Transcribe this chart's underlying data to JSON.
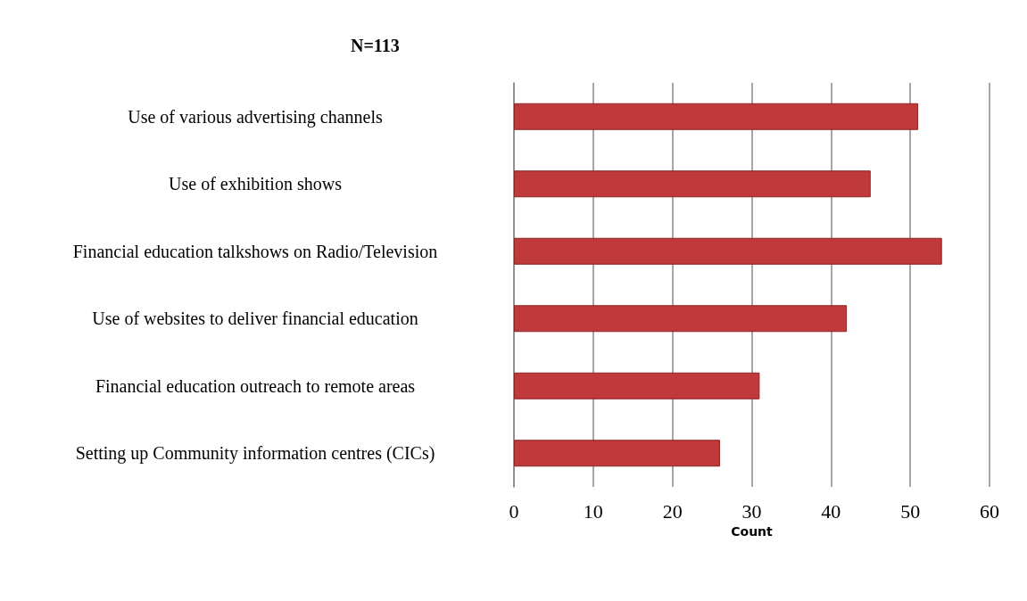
{
  "chart_data": {
    "type": "bar",
    "orientation": "horizontal",
    "title": "N=113",
    "xlabel": "Count",
    "categories": [
      "Use of various advertising channels",
      "Use of exhibition shows",
      "Financial education talkshows on Radio/Television",
      "Use of websites to deliver financial education",
      "Financial education outreach to remote areas",
      "Setting up Community information centres (CICs)"
    ],
    "values": [
      51,
      45,
      54,
      42,
      31,
      26
    ],
    "color": "#c0393b",
    "xlim": [
      0,
      60
    ],
    "xticks": [
      0,
      10,
      20,
      30,
      40,
      50,
      60
    ],
    "grid": "x"
  }
}
